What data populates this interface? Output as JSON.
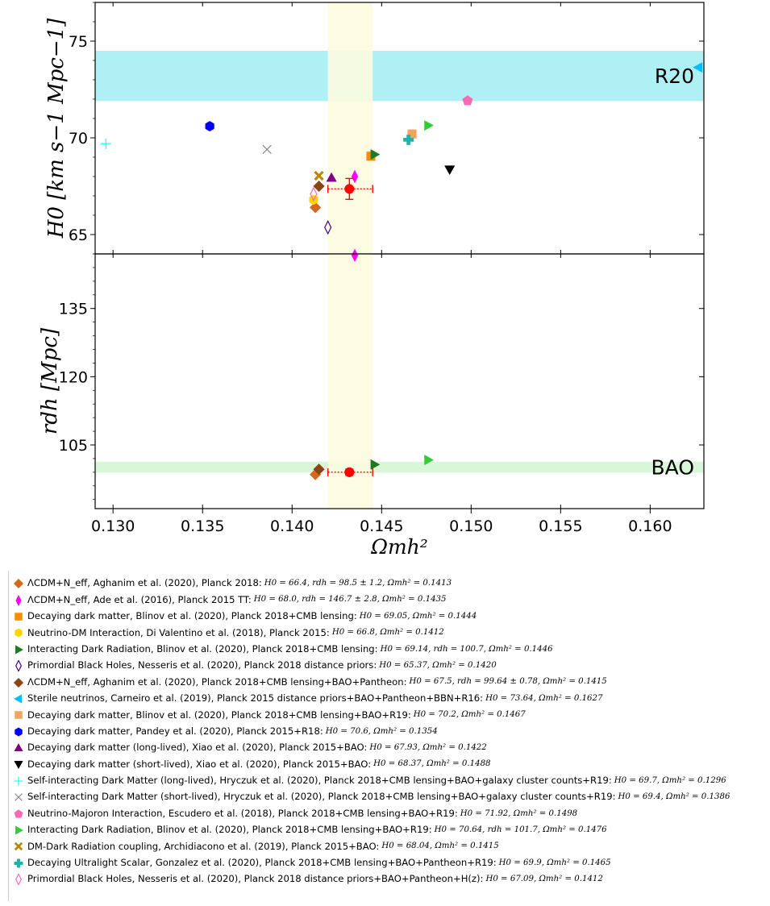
{
  "chart_data": {
    "type": "scatter",
    "xlabel": "Ωmh²",
    "xlim": [
      0.129,
      0.163
    ],
    "xticks": [
      "0.130",
      "0.135",
      "0.140",
      "0.145",
      "0.150",
      "0.155",
      "0.160"
    ],
    "xtick_values": [
      0.13,
      0.135,
      0.14,
      0.145,
      0.15,
      0.155,
      0.16
    ],
    "grid": false,
    "legend_placement": "below",
    "vertical_band": {
      "x_range": [
        0.142,
        0.1445
      ],
      "color": "#fcfce0"
    },
    "panels": [
      {
        "id": "top",
        "ylabel": "H0 [km s−1 Mpc−1]",
        "ylim": [
          64.0,
          77.0
        ],
        "yticks": [
          "65",
          "70",
          "75"
        ],
        "ytick_values": [
          65,
          70,
          75
        ],
        "band": {
          "label": "R20",
          "y_range": [
            71.9,
            74.5
          ],
          "color": "#aef0f3"
        }
      },
      {
        "id": "bottom",
        "ylabel": "rdh [Mpc]",
        "ylim": [
          91.0,
          147.0
        ],
        "yticks": [
          "105",
          "120",
          "135"
        ],
        "ytick_values": [
          105,
          120,
          135
        ],
        "band": {
          "label": "BAO",
          "y_range": [
            98.9,
            101.3
          ],
          "color": "#d9f6d9"
        }
      }
    ],
    "series": [
      {
        "name": "ΛCDM+N_eff, Aghanim et al. (2020), Planck 2018:",
        "values_text": "H0 = 66.4, rdh = 98.5 ± 1.2, Ωmh² = 0.1413",
        "x": 0.1413,
        "h0": 66.4,
        "rdh": 98.5,
        "rdh_err": 1.2,
        "marker": "diamond",
        "color": "#d2691e",
        "filled": true
      },
      {
        "name": "ΛCDM+N_eff, Ade et al. (2016), Planck 2015 TT:",
        "values_text": "H0 = 68.0, rdh = 146.7 ± 2.8, Ωmh² = 0.1435",
        "x": 0.1435,
        "h0": 68.0,
        "rdh": 146.7,
        "rdh_err": 2.8,
        "marker": "thin-diamond",
        "color": "#ff00ff",
        "filled": true
      },
      {
        "name": "Decaying dark matter, Blinov et al. (2020), Planck 2018+CMB lensing:",
        "values_text": "H0 = 69.05, Ωmh² = 0.1444",
        "x": 0.1444,
        "h0": 69.05,
        "marker": "square",
        "color": "#ff8c00",
        "filled": true
      },
      {
        "name": "Neutrino-DM Interaction, Di Valentino et al. (2018), Planck 2015:",
        "values_text": "H0 = 66.8, Ωmh² = 0.1412",
        "x": 0.1412,
        "h0": 66.8,
        "marker": "hexagon",
        "color": "#ffd700",
        "filled": true
      },
      {
        "name": "Interacting Dark Radiation, Blinov et al. (2020), Planck 2018+CMB lensing:",
        "values_text": "H0 = 69.14, rdh = 100.7, Ωmh² = 0.1446",
        "x": 0.1446,
        "h0": 69.14,
        "rdh": 100.7,
        "marker": "triangle-right",
        "color": "#1e7a1e",
        "filled": true
      },
      {
        "name": "Primordial Black Holes, Nesseris et al. (2020), Planck 2018 distance priors:",
        "values_text": "H0 = 65.37, Ωmh² = 0.1420",
        "x": 0.142,
        "h0": 65.37,
        "marker": "thin-diamond",
        "color": "#4b0082",
        "filled": false
      },
      {
        "name": "ΛCDM+N_eff, Aghanim et al. (2020), Planck 2018+CMB lensing+BAO+Pantheon:",
        "values_text": "H0 = 67.5, rdh = 99.64 ± 0.78, Ωmh² = 0.1415",
        "x": 0.1415,
        "h0": 67.5,
        "rdh": 99.64,
        "rdh_err": 0.78,
        "marker": "diamond",
        "color": "#8b4513",
        "filled": true
      },
      {
        "name": "Sterile neutrinos, Carneiro et al. (2019), Planck 2015 distance priors+BAO+Pantheon+BBN+R16:",
        "values_text": "H0 = 73.64, Ωmh² = 0.1627",
        "x": 0.1627,
        "h0": 73.64,
        "marker": "triangle-left",
        "color": "#00bfff",
        "filled": true
      },
      {
        "name": "Decaying dark matter, Blinov et al. (2020), Planck 2018+CMB lensing+BAO+R19:",
        "values_text": "H0 = 70.2, Ωmh² = 0.1467",
        "x": 0.1467,
        "h0": 70.2,
        "marker": "square",
        "color": "#f4a460",
        "filled": true
      },
      {
        "name": "Decaying dark matter, Pandey et al. (2020), Planck 2015+R18:",
        "values_text": "H0 = 70.6, Ωmh² = 0.1354",
        "x": 0.1354,
        "h0": 70.6,
        "marker": "hexagon",
        "color": "#0000ff",
        "filled": true
      },
      {
        "name": "Decaying dark matter (long-lived), Xiao et al. (2020), Planck 2015+BAO:",
        "values_text": "H0 = 67.93, Ωmh² = 0.1422",
        "x": 0.1422,
        "h0": 67.93,
        "marker": "triangle-up",
        "color": "#800080",
        "filled": true
      },
      {
        "name": "Decaying dark matter (short-lived), Xiao et al. (2020), Planck 2015+BAO:",
        "values_text": "H0 = 68.37, Ωmh² = 0.1488",
        "x": 0.1488,
        "h0": 68.37,
        "marker": "triangle-down",
        "color": "#000000",
        "filled": true
      },
      {
        "name": "Self-interacting Dark Matter (long-lived), Hryczuk et al. (2020), Planck 2018+CMB lensing+BAO+galaxy cluster counts+R19:",
        "values_text": "H0 = 69.7, Ωmh² = 0.1296",
        "x": 0.1296,
        "h0": 69.7,
        "marker": "plus",
        "color": "#00ffff",
        "filled": false
      },
      {
        "name": "Self-interacting Dark Matter (short-lived), Hryczuk et al. (2020), Planck 2018+CMB lensing+BAO+galaxy cluster counts+R19:",
        "values_text": "H0 = 69.4, Ωmh² = 0.1386",
        "x": 0.1386,
        "h0": 69.4,
        "marker": "x",
        "color": "#808080",
        "filled": false
      },
      {
        "name": "Neutrino-Majoron Interaction, Escudero et al. (2018), Planck 2018+CMB lensing+BAO+R19:",
        "values_text": "H0 = 71.92, Ωmh² = 0.1498",
        "x": 0.1498,
        "h0": 71.92,
        "marker": "pentagon",
        "color": "#ff69b4",
        "filled": true
      },
      {
        "name": "Interacting Dark Radiation, Blinov et al. (2020), Planck 2018+CMB lensing+BAO+R19:",
        "values_text": "H0 = 70.64, rdh = 101.7, Ωmh² = 0.1476",
        "x": 0.1476,
        "h0": 70.64,
        "rdh": 101.7,
        "marker": "triangle-right",
        "color": "#32cd32",
        "filled": true
      },
      {
        "name": "DM-Dark Radiation coupling, Archidiacono et al. (2019), Planck 2015+BAO:",
        "values_text": "H0 = 68.04, Ωmh² = 0.1415",
        "x": 0.1415,
        "h0": 68.04,
        "marker": "x-filled",
        "color": "#b8860b",
        "filled": true
      },
      {
        "name": "Decaying Ultralight Scalar, Gonzalez et al. (2020), Planck 2018+CMB lensing+BAO+Pantheon+R19:",
        "values_text": "H0 = 69.9, Ωmh² = 0.1465",
        "x": 0.1465,
        "h0": 69.9,
        "marker": "plus-filled",
        "color": "#20b2aa",
        "filled": true
      },
      {
        "name": "Primordial Black Holes, Nesseris et al. (2020), Planck 2018 distance priors+BAO+Pantheon+H(z):",
        "values_text": "H0 = 67.09, Ωmh² = 0.1412",
        "x": 0.1412,
        "h0": 67.09,
        "marker": "thin-diamond",
        "color": "#ff69b4",
        "filled": false
      }
    ],
    "reference_point": {
      "marker": "circle",
      "color": "#ff0000",
      "x": 0.1432,
      "x_err_low": 0.0012,
      "x_err_high": 0.0013,
      "h0": 67.36,
      "h0_err": 0.54,
      "rdh": 99.0,
      "rdh_err": 0.7
    }
  }
}
